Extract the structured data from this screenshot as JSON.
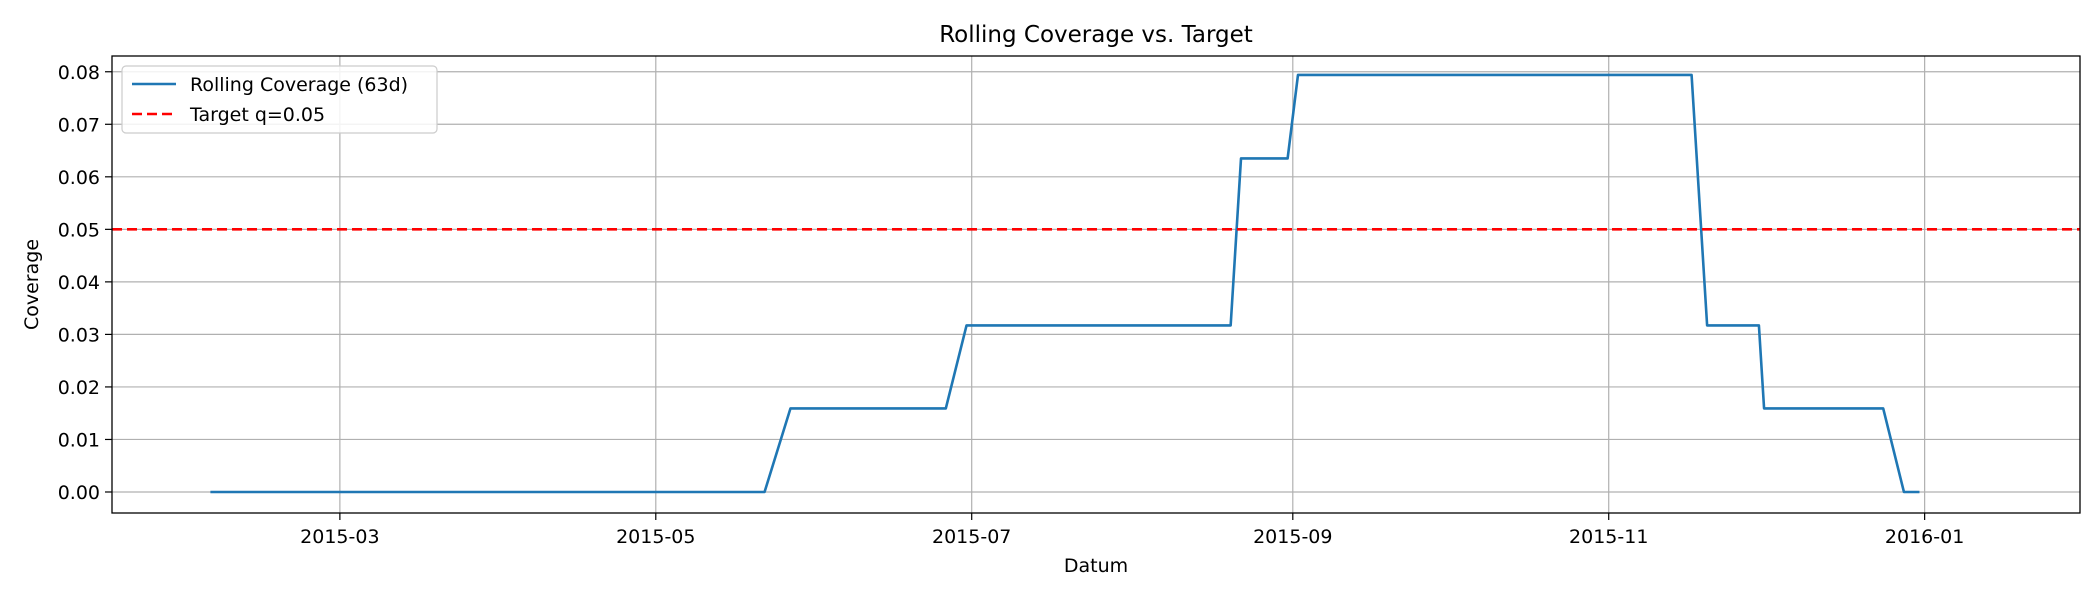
{
  "chart_data": {
    "type": "line",
    "title": "Rolling Coverage vs. Target",
    "xlabel": "Datum",
    "ylabel": "Coverage",
    "x_ticks": [
      "2015-03-01",
      "2015-05-01",
      "2015-07-01",
      "2015-09-01",
      "2015-11-01",
      "2016-01-01"
    ],
    "x_tick_labels": [
      "2015-03",
      "2015-05",
      "2015-07",
      "2015-09",
      "2015-11",
      "2016-01"
    ],
    "xlim": [
      "2015-01-16",
      "2016-01-31"
    ],
    "y_ticks": [
      0.0,
      0.01,
      0.02,
      0.03,
      0.04,
      0.05,
      0.06,
      0.07,
      0.08
    ],
    "y_tick_labels": [
      "0.00",
      "0.01",
      "0.02",
      "0.03",
      "0.04",
      "0.05",
      "0.06",
      "0.07",
      "0.08"
    ],
    "ylim": [
      -0.004,
      0.083
    ],
    "grid": true,
    "legend_position": "top-left",
    "series": [
      {
        "name": "Rolling Coverage (63d)",
        "color": "#1f77b4",
        "style": "solid",
        "points": [
          [
            "2015-02-04",
            0.0
          ],
          [
            "2015-05-22",
            0.0
          ],
          [
            "2015-05-27",
            0.0159
          ],
          [
            "2015-06-26",
            0.0159
          ],
          [
            "2015-06-30",
            0.0317
          ],
          [
            "2015-08-20",
            0.0317
          ],
          [
            "2015-08-22",
            0.0635
          ],
          [
            "2015-08-31",
            0.0635
          ],
          [
            "2015-09-02",
            0.0794
          ],
          [
            "2015-11-17",
            0.0794
          ],
          [
            "2015-11-20",
            0.0317
          ],
          [
            "2015-11-30",
            0.0317
          ],
          [
            "2015-12-01",
            0.0159
          ],
          [
            "2015-12-24",
            0.0159
          ],
          [
            "2015-12-28",
            0.0
          ],
          [
            "2015-12-31",
            0.0
          ]
        ]
      },
      {
        "name": "Target q=0.05",
        "color": "#ff0000",
        "style": "dashed",
        "hline": 0.05
      }
    ]
  }
}
